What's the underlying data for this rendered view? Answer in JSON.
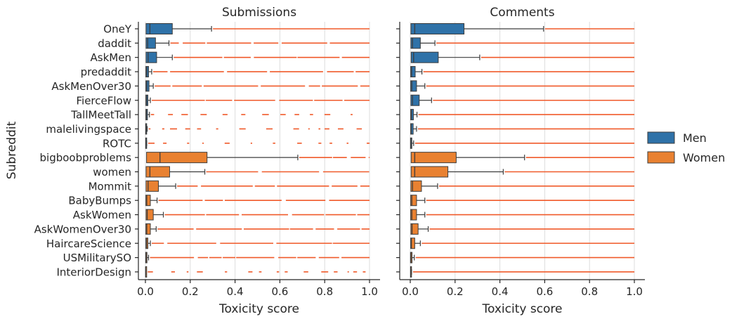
{
  "figure": {
    "ylabel": "Subreddit",
    "categories": [
      "OneY",
      "daddit",
      "AskMen",
      "predaddit",
      "AskMenOver30",
      "FierceFlow",
      "TallMeetTall",
      "malelivingspace",
      "ROTC",
      "bigboobproblems",
      "women",
      "Mommit",
      "BabyBumps",
      "AskWomen",
      "AskWomenOver30",
      "HaircareScience",
      "USMilitarySO",
      "InteriorDesign"
    ],
    "groups": [
      "Men",
      "Men",
      "Men",
      "Men",
      "Men",
      "Men",
      "Men",
      "Men",
      "Men",
      "Women",
      "Women",
      "Women",
      "Women",
      "Women",
      "Women",
      "Women",
      "Women",
      "Women"
    ],
    "colors": {
      "Men": "#2f72a8",
      "Women": "#e98131",
      "outlier": "#f05a2a",
      "grid": "#dddddd",
      "text": "#262626"
    },
    "legend": {
      "placement": "right",
      "items": [
        {
          "label": "Men",
          "color": "#2f72a8"
        },
        {
          "label": "Women",
          "color": "#e98131"
        }
      ]
    }
  },
  "chart_data": [
    {
      "type": "box",
      "title": "Submissions",
      "xlabel": "Toxicity score",
      "xlim": [
        0,
        1
      ],
      "xticks": [
        "0.0",
        "0.2",
        "0.4",
        "0.6",
        "0.8",
        "1.0"
      ],
      "xgrid": true,
      "boxes": [
        {
          "category": "OneY",
          "q1": 0.003,
          "median": 0.02,
          "q3": 0.12,
          "whisker_high": 0.295
        },
        {
          "category": "daddit",
          "q1": 0.003,
          "median": 0.01,
          "q3": 0.045,
          "whisker_high": 0.105
        },
        {
          "category": "AskMen",
          "q1": 0.003,
          "median": 0.012,
          "q3": 0.05,
          "whisker_high": 0.12
        },
        {
          "category": "predaddit",
          "q1": 0.002,
          "median": 0.006,
          "q3": 0.014,
          "whisker_high": 0.028
        },
        {
          "category": "AskMenOver30",
          "q1": 0.002,
          "median": 0.006,
          "q3": 0.016,
          "whisker_high": 0.035
        },
        {
          "category": "FierceFlow",
          "q1": 0.002,
          "median": 0.005,
          "q3": 0.011,
          "whisker_high": 0.022
        },
        {
          "category": "TallMeetTall",
          "q1": 0.002,
          "median": 0.004,
          "q3": 0.009,
          "whisker_high": 0.018
        },
        {
          "category": "malelivingspace",
          "q1": 0.001,
          "median": 0.002,
          "q3": 0.004,
          "whisker_high": 0.008
        },
        {
          "category": "ROTC",
          "q1": 0.001,
          "median": 0.002,
          "q3": 0.003,
          "whisker_high": 0.006
        },
        {
          "category": "bigboobproblems",
          "q1": 0.005,
          "median": 0.065,
          "q3": 0.275,
          "whisker_high": 0.68
        },
        {
          "category": "women",
          "q1": 0.003,
          "median": 0.02,
          "q3": 0.108,
          "whisker_high": 0.265
        },
        {
          "category": "Mommit",
          "q1": 0.003,
          "median": 0.012,
          "q3": 0.058,
          "whisker_high": 0.135
        },
        {
          "category": "BabyBumps",
          "q1": 0.002,
          "median": 0.006,
          "q3": 0.022,
          "whisker_high": 0.052
        },
        {
          "category": "AskWomen",
          "q1": 0.003,
          "median": 0.008,
          "q3": 0.035,
          "whisker_high": 0.08
        },
        {
          "category": "AskWomenOver30",
          "q1": 0.002,
          "median": 0.006,
          "q3": 0.022,
          "whisker_high": 0.048
        },
        {
          "category": "HaircareScience",
          "q1": 0.002,
          "median": 0.005,
          "q3": 0.011,
          "whisker_high": 0.022
        },
        {
          "category": "USMilitarySO",
          "q1": 0.001,
          "median": 0.003,
          "q3": 0.007,
          "whisker_high": 0.014
        },
        {
          "category": "InteriorDesign",
          "q1": 0.001,
          "median": 0.001,
          "q3": 0.002,
          "whisker_high": 0.004
        }
      ]
    },
    {
      "type": "box",
      "title": "Comments",
      "xlabel": "Toxicity score",
      "xlim": [
        0,
        1
      ],
      "xticks": [
        "0.0",
        "0.2",
        "0.4",
        "0.6",
        "0.8",
        "1.0"
      ],
      "xgrid": true,
      "boxes": [
        {
          "category": "OneY",
          "q1": 0.003,
          "median": 0.02,
          "q3": 0.24,
          "whisker_high": 0.595
        },
        {
          "category": "daddit",
          "q1": 0.003,
          "median": 0.01,
          "q3": 0.045,
          "whisker_high": 0.11
        },
        {
          "category": "AskMen",
          "q1": 0.004,
          "median": 0.015,
          "q3": 0.125,
          "whisker_high": 0.31
        },
        {
          "category": "predaddit",
          "q1": 0.002,
          "median": 0.006,
          "q3": 0.022,
          "whisker_high": 0.052
        },
        {
          "category": "AskMenOver30",
          "q1": 0.002,
          "median": 0.007,
          "q3": 0.028,
          "whisker_high": 0.065
        },
        {
          "category": "FierceFlow",
          "q1": 0.003,
          "median": 0.01,
          "q3": 0.04,
          "whisker_high": 0.095
        },
        {
          "category": "TallMeetTall",
          "q1": 0.002,
          "median": 0.005,
          "q3": 0.014,
          "whisker_high": 0.03
        },
        {
          "category": "malelivingspace",
          "q1": 0.002,
          "median": 0.004,
          "q3": 0.013,
          "whisker_high": 0.028
        },
        {
          "category": "ROTC",
          "q1": 0.001,
          "median": 0.003,
          "q3": 0.007,
          "whisker_high": 0.015
        },
        {
          "category": "bigboobproblems",
          "q1": 0.004,
          "median": 0.02,
          "q3": 0.205,
          "whisker_high": 0.51
        },
        {
          "category": "women",
          "q1": 0.004,
          "median": 0.02,
          "q3": 0.168,
          "whisker_high": 0.415
        },
        {
          "category": "Mommit",
          "q1": 0.003,
          "median": 0.01,
          "q3": 0.05,
          "whisker_high": 0.122
        },
        {
          "category": "BabyBumps",
          "q1": 0.002,
          "median": 0.007,
          "q3": 0.028,
          "whisker_high": 0.065
        },
        {
          "category": "AskWomen",
          "q1": 0.002,
          "median": 0.007,
          "q3": 0.028,
          "whisker_high": 0.065
        },
        {
          "category": "AskWomenOver30",
          "q1": 0.003,
          "median": 0.008,
          "q3": 0.035,
          "whisker_high": 0.08
        },
        {
          "category": "HaircareScience",
          "q1": 0.002,
          "median": 0.005,
          "q3": 0.02,
          "whisker_high": 0.045
        },
        {
          "category": "USMilitarySO",
          "q1": 0.001,
          "median": 0.003,
          "q3": 0.008,
          "whisker_high": 0.018
        },
        {
          "category": "InteriorDesign",
          "q1": 0.001,
          "median": 0.002,
          "q3": 0.003,
          "whisker_high": 0.006
        }
      ]
    }
  ]
}
